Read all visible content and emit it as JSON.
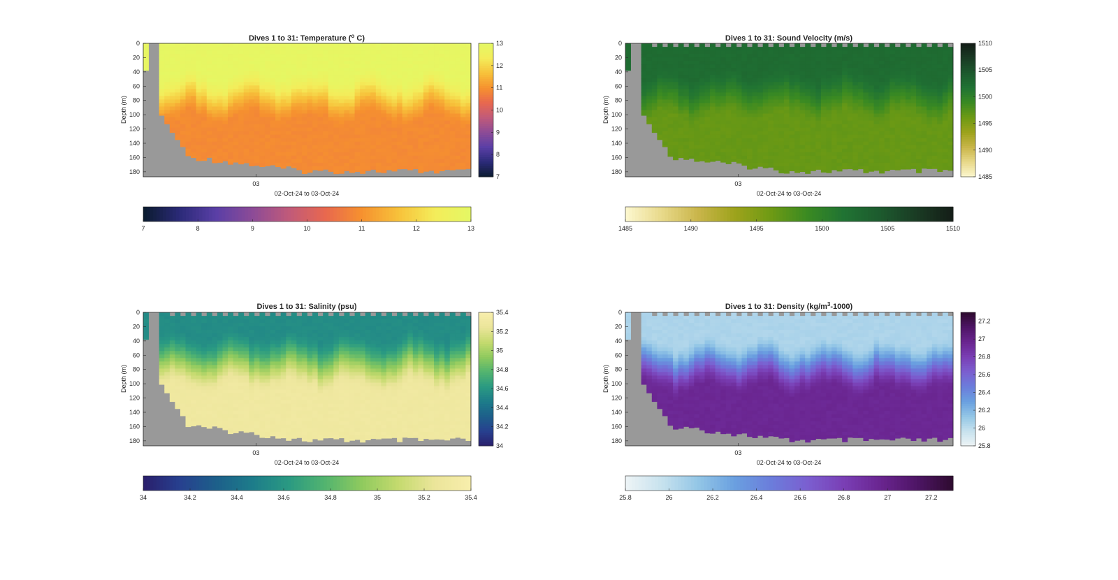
{
  "chart_data": [
    {
      "type": "heatmap",
      "title_main": "Dives 1 to 31: Temperature (",
      "title_sup": "o",
      "title_tail": " C)",
      "xlabel": "02-Oct-24 to 03-Oct-24",
      "ylabel": "Depth (m)",
      "x_tick_labels": [
        "03"
      ],
      "y_ticks": [
        0,
        20,
        40,
        60,
        80,
        100,
        120,
        140,
        160,
        180
      ],
      "ylim": [
        0,
        187
      ],
      "colorbar_range": [
        7,
        13
      ],
      "colorbar_ticks": [
        7,
        8,
        9,
        10,
        11,
        12,
        13
      ],
      "colormap": [
        "#0b1b2e",
        "#2b2a78",
        "#5a3fa6",
        "#8c4b97",
        "#c05a7a",
        "#e8684f",
        "#f6912f",
        "#f7c13a",
        "#f4ec5a",
        "#e4f864"
      ],
      "profile": {
        "surface": 12.9,
        "deep": 10.9,
        "thermocline_top": 40,
        "thermocline_bottom": 110
      }
    },
    {
      "type": "heatmap",
      "title_main": "Dives 1 to 31: Sound Velocity (m/s)",
      "title_sup": "",
      "title_tail": "",
      "xlabel": "02-Oct-24 to 03-Oct-24",
      "ylabel": "Depth (m)",
      "x_tick_labels": [
        "03"
      ],
      "y_ticks": [
        0,
        20,
        40,
        60,
        80,
        100,
        120,
        140,
        160,
        180
      ],
      "ylim": [
        0,
        187
      ],
      "colorbar_range": [
        1485,
        1510
      ],
      "colorbar_ticks": [
        1485,
        1490,
        1495,
        1500,
        1505,
        1510
      ],
      "colormap": [
        "#fdf8d0",
        "#e8d98a",
        "#c9b54a",
        "#9ea31c",
        "#6e9a14",
        "#3a8a22",
        "#207333",
        "#1d5a2e",
        "#1a3b24",
        "#141d17"
      ],
      "profile": {
        "surface": 1502.5,
        "deep": 1496.5,
        "thermocline_top": 40,
        "thermocline_bottom": 110
      }
    },
    {
      "type": "heatmap",
      "title_main": "Dives 1 to 31: Salinity (psu)",
      "title_sup": "",
      "title_tail": "",
      "xlabel": "02-Oct-24 to 03-Oct-24",
      "ylabel": "Depth (m)",
      "x_tick_labels": [
        "03"
      ],
      "y_ticks": [
        0,
        20,
        40,
        60,
        80,
        100,
        120,
        140,
        160,
        180
      ],
      "ylim": [
        0,
        187
      ],
      "colorbar_range": [
        34,
        35.4
      ],
      "colorbar_ticks": [
        34,
        34.2,
        34.4,
        34.6,
        34.8,
        35,
        35.2,
        35.4
      ],
      "colormap": [
        "#2a1f6b",
        "#27408f",
        "#1d5f8a",
        "#1d7c8a",
        "#2a9a82",
        "#53b46f",
        "#8fca5e",
        "#c4da6e",
        "#ebe59a",
        "#f8eeac"
      ],
      "profile": {
        "surface": 34.55,
        "deep": 35.3,
        "thermocline_top": 30,
        "thermocline_bottom": 110
      }
    },
    {
      "type": "heatmap",
      "title_main": "Dives 1 to 31: Density (kg/m",
      "title_sup": "3",
      "title_tail": "-1000)",
      "xlabel": "02-Oct-24 to 03-Oct-24",
      "ylabel": "Depth (m)",
      "x_tick_labels": [
        "03"
      ],
      "y_ticks": [
        0,
        20,
        40,
        60,
        80,
        100,
        120,
        140,
        160,
        180
      ],
      "ylim": [
        0,
        187
      ],
      "colorbar_range": [
        25.8,
        27.3
      ],
      "colorbar_ticks": [
        25.8,
        26,
        26.2,
        26.4,
        26.6,
        26.8,
        27,
        27.2
      ],
      "colorbar_vertical_ticks": [
        25.8,
        26,
        26.2,
        26.4,
        26.6,
        26.8,
        27,
        27.2
      ],
      "colormap": [
        "#eef4f6",
        "#c7e2ee",
        "#93c6e6",
        "#6aa0e0",
        "#6b7ddb",
        "#7b5fd0",
        "#7a3fb5",
        "#6a2590",
        "#4e1566",
        "#2e0b2e"
      ],
      "profile": {
        "surface": 26.05,
        "deep": 26.95,
        "thermocline_top": 40,
        "thermocline_bottom": 110
      }
    }
  ]
}
